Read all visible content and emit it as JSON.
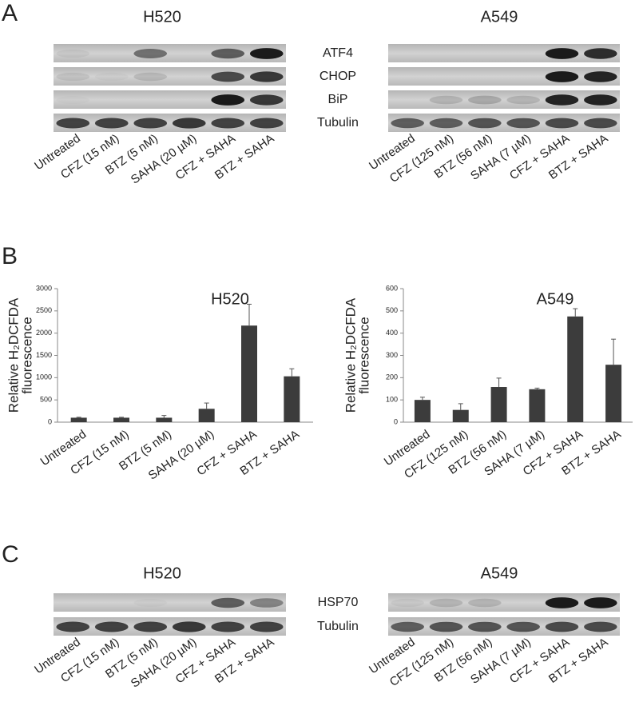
{
  "panel_a": {
    "letter": "A",
    "left_title": "H520",
    "right_title": "A549",
    "rows": [
      "ATF4",
      "CHOP",
      "BiP",
      "Tubulin"
    ],
    "left_lanes": [
      "Untreated",
      "CFZ (15 nM)",
      "BTZ (5 nM)",
      "SAHA (20 µM)",
      "CFZ + SAHA",
      "BTZ + SAHA"
    ],
    "right_lanes": [
      "Untreated",
      "CFZ (125 nM)",
      "BTZ (56 nM)",
      "SAHA (7 µM)",
      "CFZ + SAHA",
      "BTZ + SAHA"
    ]
  },
  "panel_b": {
    "letter": "B"
  },
  "chart_data": [
    {
      "type": "bar",
      "title": "H520",
      "ylabel": [
        "Relative H₂DCFDA",
        "fluorescence"
      ],
      "categories": [
        "Untreated",
        "CFZ (15 nM)",
        "BTZ (5 nM)",
        "SAHA (20 µM)",
        "CFZ + SAHA",
        "BTZ + SAHA"
      ],
      "values": [
        100,
        100,
        100,
        300,
        2170,
        1030
      ],
      "errors": [
        10,
        10,
        50,
        130,
        480,
        170
      ],
      "color": "#3c3c3c",
      "ylim": [
        0,
        3000
      ],
      "yticks": [
        0,
        500,
        1000,
        1500,
        2000,
        2500,
        3000
      ]
    },
    {
      "type": "bar",
      "title": "A549",
      "ylabel": [
        "Relative H₂DCFDA",
        "fluorescence"
      ],
      "categories": [
        "Untreated",
        "CFZ (125 nM)",
        "BTZ (56 nM)",
        "SAHA (7 µM)",
        "CFZ + SAHA",
        "BTZ + SAHA"
      ],
      "values": [
        100,
        55,
        158,
        148,
        475,
        258
      ],
      "errors": [
        12,
        28,
        40,
        5,
        35,
        115
      ],
      "color": "#3c3c3c",
      "ylim": [
        0,
        600
      ],
      "yticks": [
        0,
        100,
        200,
        300,
        400,
        500,
        600
      ]
    }
  ],
  "panel_c": {
    "letter": "C",
    "left_title": "H520",
    "right_title": "A549",
    "rows": [
      "HSP70",
      "Tubulin"
    ],
    "left_lanes": [
      "Untreated",
      "CFZ (15 nM)",
      "BTZ (5 nM)",
      "SAHA (20 µM)",
      "CFZ + SAHA",
      "BTZ + SAHA"
    ],
    "right_lanes": [
      "Untreated",
      "CFZ (125 nM)",
      "BTZ (56 nM)",
      "SAHA (7 µM)",
      "CFZ + SAHA",
      "BTZ + SAHA"
    ]
  }
}
